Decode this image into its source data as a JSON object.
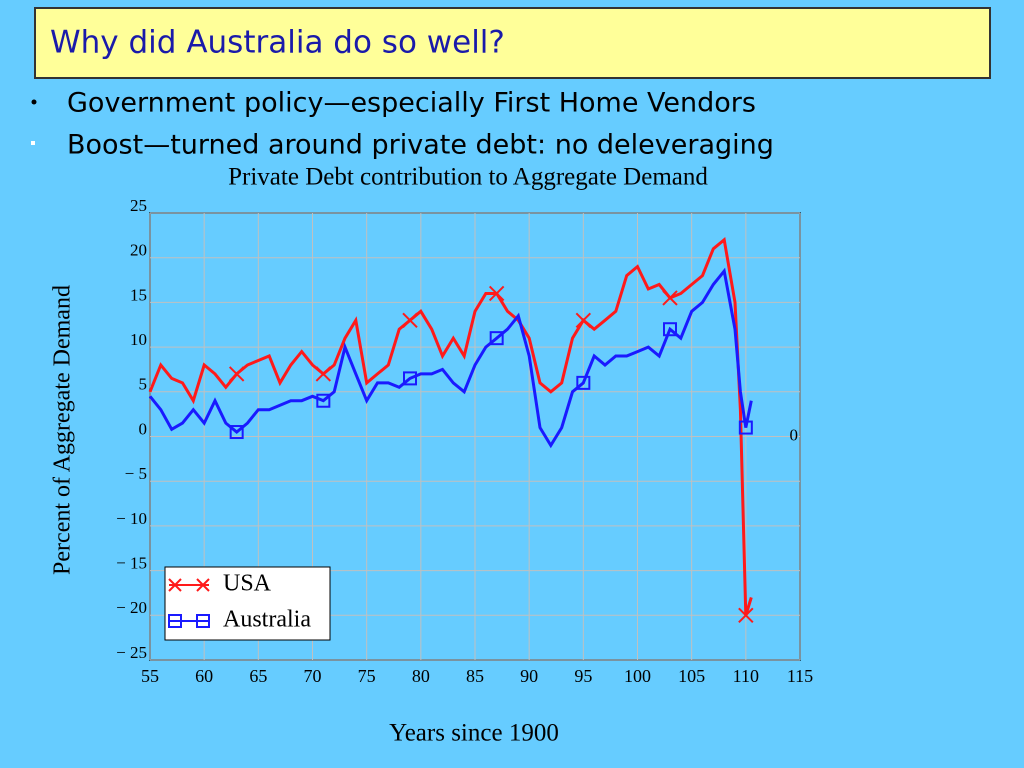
{
  "slide": {
    "title": "Why did Australia do so well?",
    "bullets": [
      "Government policy—especially First Home Vendors",
      "Boost—turned around private debt: no deleveraging"
    ]
  },
  "chart_data": {
    "type": "line",
    "title": "Private Debt contribution to Aggregate Demand",
    "xlabel": "Years since 1900",
    "ylabel": "Percent of Aggregate Demand",
    "x": [
      55,
      56,
      57,
      58,
      59,
      60,
      61,
      62,
      63,
      64,
      65,
      66,
      67,
      68,
      69,
      70,
      71,
      72,
      73,
      74,
      75,
      76,
      77,
      78,
      79,
      80,
      81,
      82,
      83,
      84,
      85,
      86,
      87,
      88,
      89,
      90,
      91,
      92,
      93,
      94,
      95,
      96,
      97,
      98,
      99,
      100,
      101,
      102,
      103,
      104,
      105,
      106,
      107,
      108,
      109,
      109.5,
      110,
      110.5
    ],
    "series": [
      {
        "name": "USA",
        "color": "#ff1a1a",
        "values": [
          5,
          8,
          6.5,
          6,
          4,
          8,
          7,
          5.5,
          7,
          8,
          8.5,
          9,
          6,
          8,
          9.5,
          8,
          7,
          8,
          11,
          13,
          6,
          7,
          8,
          12,
          13,
          14,
          12,
          9,
          11,
          9,
          14,
          16,
          16,
          14,
          13,
          11,
          6,
          5,
          6,
          11,
          13,
          12,
          13,
          14,
          18,
          19,
          16.5,
          17,
          15.5,
          16,
          17,
          18,
          21,
          22,
          15,
          3,
          -20,
          -18
        ]
      },
      {
        "name": "Australia",
        "color": "#1a1aff",
        "values": [
          4.5,
          3,
          0.8,
          1.5,
          3,
          1.5,
          4,
          1.5,
          0.5,
          1.5,
          3,
          3,
          3.5,
          4,
          4,
          4.5,
          4,
          5,
          10,
          7,
          4,
          6,
          6,
          5.5,
          6.5,
          7,
          7,
          7.5,
          6,
          5,
          8,
          10,
          11,
          12,
          13.5,
          9,
          1,
          -1,
          1,
          5,
          6,
          9,
          8,
          9,
          9,
          9.5,
          10,
          9,
          12,
          11,
          14,
          15,
          17,
          18.5,
          12,
          5,
          1,
          4
        ]
      }
    ],
    "xlim": [
      55,
      115
    ],
    "xticks": [
      55,
      60,
      65,
      70,
      75,
      80,
      85,
      90,
      95,
      100,
      105,
      110,
      115
    ],
    "ylim": [
      -25,
      25
    ],
    "yticks": [
      {
        "value": -25,
        "label": "− 25"
      },
      {
        "value": -20,
        "label": "− 20"
      },
      {
        "value": -15,
        "label": "− 15"
      },
      {
        "value": -10,
        "label": "− 10"
      },
      {
        "value": -5,
        "label": "− 5"
      },
      0,
      5,
      10,
      15,
      20,
      25
    ],
    "y2lim": [
      -25,
      25
    ],
    "y2ticks": [
      0
    ],
    "grid": true,
    "legend": "lower left"
  }
}
